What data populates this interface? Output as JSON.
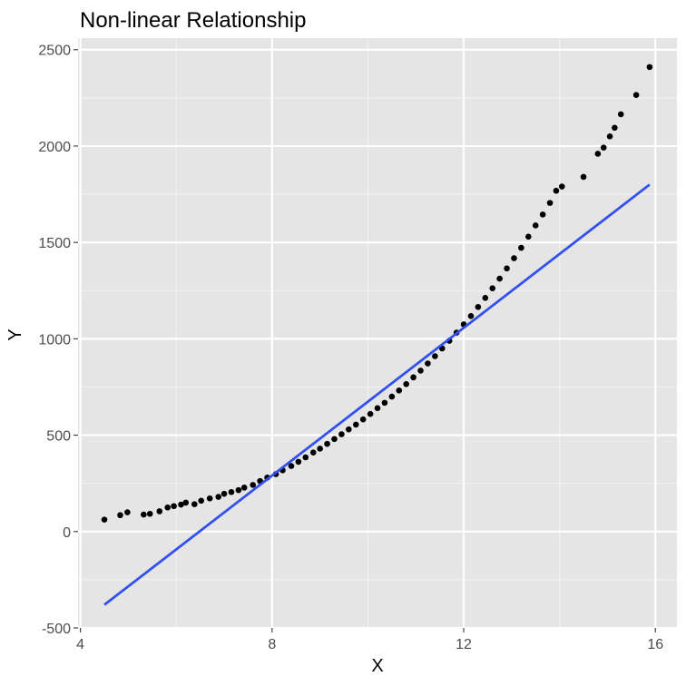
{
  "chart_data": {
    "type": "scatter",
    "title": "Non-linear Relationship",
    "xlabel": "X",
    "ylabel": "Y",
    "xlim": [
      3.95,
      16.45
    ],
    "ylim": [
      -500,
      2560
    ],
    "x_ticks": [
      4,
      8,
      12,
      16
    ],
    "y_ticks": [
      -500,
      0,
      500,
      1000,
      1500,
      2000,
      2500
    ],
    "grid": true,
    "legend": "none",
    "colors": {
      "panel_background": "#e5e5e5",
      "grid_major": "#ffffff",
      "grid_minor": "#f2f2f2",
      "points": "#000000",
      "fit_line": "#3250f0",
      "tick_text": "#4d4d4d"
    },
    "series": [
      {
        "type": "scatter",
        "points": [
          [
            4.5,
            62
          ],
          [
            4.83,
            85
          ],
          [
            4.98,
            100
          ],
          [
            5.32,
            88
          ],
          [
            5.45,
            92
          ],
          [
            5.65,
            105
          ],
          [
            5.82,
            125
          ],
          [
            5.95,
            132
          ],
          [
            6.1,
            140
          ],
          [
            6.2,
            150
          ],
          [
            6.38,
            142
          ],
          [
            6.52,
            160
          ],
          [
            6.7,
            172
          ],
          [
            6.88,
            180
          ],
          [
            7.0,
            196
          ],
          [
            7.15,
            205
          ],
          [
            7.3,
            215
          ],
          [
            7.42,
            228
          ],
          [
            7.6,
            242
          ],
          [
            7.75,
            262
          ],
          [
            7.9,
            280
          ],
          [
            8.08,
            298
          ],
          [
            8.22,
            318
          ],
          [
            8.4,
            340
          ],
          [
            8.55,
            362
          ],
          [
            8.7,
            385
          ],
          [
            8.86,
            410
          ],
          [
            9.0,
            430
          ],
          [
            9.15,
            455
          ],
          [
            9.3,
            480
          ],
          [
            9.45,
            505
          ],
          [
            9.6,
            530
          ],
          [
            9.75,
            555
          ],
          [
            9.9,
            582
          ],
          [
            10.05,
            610
          ],
          [
            10.2,
            640
          ],
          [
            10.35,
            668
          ],
          [
            10.5,
            700
          ],
          [
            10.65,
            732
          ],
          [
            10.8,
            765
          ],
          [
            10.95,
            800
          ],
          [
            11.1,
            835
          ],
          [
            11.25,
            872
          ],
          [
            11.4,
            910
          ],
          [
            11.55,
            950
          ],
          [
            11.7,
            990
          ],
          [
            11.85,
            1032
          ],
          [
            12.0,
            1075
          ],
          [
            12.15,
            1118
          ],
          [
            12.3,
            1165
          ],
          [
            12.45,
            1212
          ],
          [
            12.6,
            1262
          ],
          [
            12.75,
            1312
          ],
          [
            12.9,
            1365
          ],
          [
            13.05,
            1418
          ],
          [
            13.2,
            1472
          ],
          [
            13.35,
            1530
          ],
          [
            13.5,
            1588
          ],
          [
            13.65,
            1645
          ],
          [
            13.8,
            1705
          ],
          [
            13.93,
            1768
          ],
          [
            14.05,
            1790
          ],
          [
            14.5,
            1840
          ],
          [
            14.8,
            1960
          ],
          [
            14.92,
            1992
          ],
          [
            15.05,
            2050
          ],
          [
            15.15,
            2095
          ],
          [
            15.28,
            2165
          ],
          [
            15.6,
            2265
          ],
          [
            15.88,
            2410
          ]
        ]
      },
      {
        "type": "line",
        "x": [
          4.5,
          15.88
        ],
        "y": [
          -380,
          1800
        ]
      }
    ]
  }
}
